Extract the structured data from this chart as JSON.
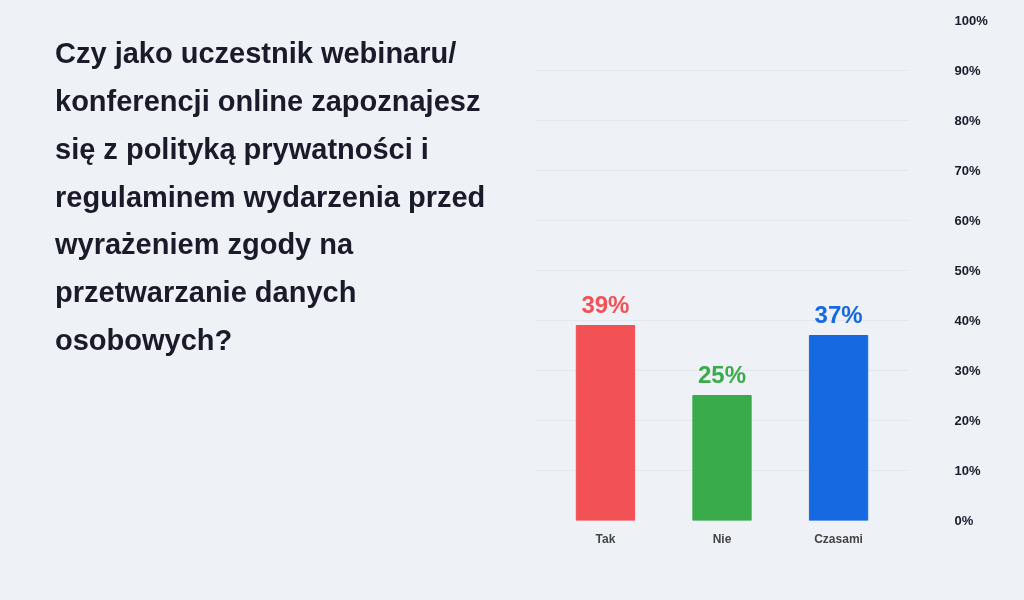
{
  "chart_data": {
    "type": "bar",
    "title": "Czy jako uczestnik webinaru/ konferencji online zapoznajesz się z polityką prywatności i regulaminem wydarzenia przed wyrażeniem zgody na przetwarzanie danych osobowych?",
    "categories": [
      "Tak",
      "Nie",
      "Czasami"
    ],
    "values": [
      39,
      25,
      37
    ],
    "colors": [
      "#f25156",
      "#3aab4b",
      "#1769e2"
    ],
    "value_labels": [
      "39%",
      "25%",
      "37%"
    ],
    "ylim": [
      0,
      100
    ],
    "yticks": [
      {
        "value": 0,
        "label": "0%"
      },
      {
        "value": 10,
        "label": "10%"
      },
      {
        "value": 20,
        "label": "20%"
      },
      {
        "value": 30,
        "label": "30%"
      },
      {
        "value": 40,
        "label": "40%"
      },
      {
        "value": 50,
        "label": "50%"
      },
      {
        "value": 60,
        "label": "60%"
      },
      {
        "value": 70,
        "label": "70%"
      },
      {
        "value": 80,
        "label": "80%"
      },
      {
        "value": 90,
        "label": "90%"
      },
      {
        "value": 100,
        "label": "100%"
      }
    ],
    "grid": "y"
  }
}
